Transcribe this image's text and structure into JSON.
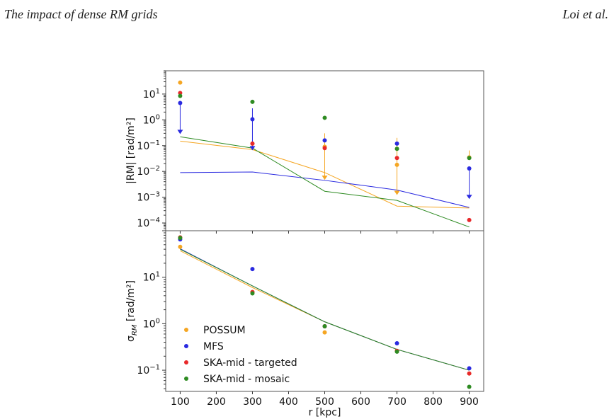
{
  "page": {
    "title": "The impact of dense RM grids",
    "authors": "Loi et al."
  },
  "colors": {
    "POSSUM": "#f5a623",
    "MFS": "#2a2ae0",
    "SKA-mid - targeted": "#e8282a",
    "SKA-mid - mosaic": "#2e8b22"
  },
  "chart_data": [
    {
      "type": "scatter",
      "panel": "top",
      "ylabel": "|RM| [rad/m²]",
      "yscale": "log",
      "ylim": [
        5e-05,
        80
      ],
      "xlim": [
        60,
        940
      ],
      "yticks": [
        {
          "value": 10,
          "base": "10",
          "exp": "1"
        },
        {
          "value": 1,
          "base": "10",
          "exp": "0"
        },
        {
          "value": 0.1,
          "base": "10",
          "exp": "−1"
        },
        {
          "value": 0.01,
          "base": "10",
          "exp": "−2"
        },
        {
          "value": 0.001,
          "base": "10",
          "exp": "−3"
        },
        {
          "value": 0.0001,
          "base": "10",
          "exp": "−4"
        }
      ],
      "x": [
        100,
        300,
        500,
        700,
        900
      ],
      "series": [
        {
          "name": "POSSUM",
          "points": [
            28,
            0.12,
            0.09,
            0.018,
            0.035
          ],
          "yerr_low": [
            null,
            null,
            0.005,
            0.0013,
            null
          ],
          "yerr_high": [
            null,
            null,
            0.3,
            0.2,
            0.065
          ],
          "lower_is_limit": [
            false,
            false,
            true,
            true,
            false
          ],
          "model": [
            0.15,
            0.07,
            0.009,
            0.00045,
            0.00038
          ]
        },
        {
          "name": "MFS",
          "points": [
            4.5,
            1.05,
            0.16,
            0.12,
            0.013
          ],
          "yerr_low": [
            0.3,
            0.07,
            null,
            null,
            0.0009
          ],
          "yerr_high": [
            null,
            2.8,
            null,
            null,
            null
          ],
          "lower_is_limit": [
            true,
            true,
            false,
            false,
            true
          ],
          "model": [
            0.009,
            0.0095,
            0.0045,
            0.0019,
            0.0004
          ]
        },
        {
          "name": "SKA-mid - targeted",
          "points": [
            11,
            0.12,
            0.08,
            0.033,
            0.00013
          ],
          "yerr_low": [
            null,
            null,
            null,
            null,
            null
          ],
          "yerr_high": [
            null,
            null,
            null,
            null,
            null
          ],
          "lower_is_limit": [
            false,
            false,
            false,
            false,
            false
          ],
          "model": []
        },
        {
          "name": "SKA-mid - mosaic",
          "points": [
            8.5,
            5,
            1.2,
            0.075,
            0.033
          ],
          "yerr_low": [
            null,
            null,
            null,
            null,
            null
          ],
          "yerr_high": [
            null,
            null,
            null,
            null,
            null
          ],
          "lower_is_limit": [
            false,
            false,
            false,
            false,
            false
          ],
          "model": [
            0.22,
            0.08,
            0.0017,
            0.00075,
            7e-05
          ]
        }
      ]
    },
    {
      "type": "scatter",
      "panel": "bottom",
      "xlabel": "r [kpc]",
      "ylabel": "σ_RM [rad/m²]",
      "yscale": "log",
      "ylim": [
        0.035,
        100
      ],
      "xlim": [
        60,
        940
      ],
      "xticks": [
        100,
        200,
        300,
        400,
        500,
        600,
        700,
        800,
        900
      ],
      "yticks": [
        {
          "value": 10,
          "base": "10",
          "exp": "1"
        },
        {
          "value": 1,
          "base": "10",
          "exp": "0"
        },
        {
          "value": 0.1,
          "base": "10",
          "exp": "−1"
        }
      ],
      "x": [
        100,
        300,
        500,
        700,
        900
      ],
      "series": [
        {
          "name": "POSSUM",
          "points": [
            45,
            4.8,
            0.65,
            0.26,
            0.085
          ],
          "model": [
            37,
            6,
            1.1,
            0.28,
            0.1
          ]
        },
        {
          "name": "MFS",
          "points": [
            65,
            15,
            0.88,
            0.38,
            0.11
          ],
          "model": [
            41,
            6.5,
            1.1,
            0.28,
            0.1
          ]
        },
        {
          "name": "SKA-mid - targeted",
          "points": [
            72,
            4.8,
            0.88,
            0.26,
            0.085
          ],
          "model": []
        },
        {
          "name": "SKA-mid - mosaic",
          "points": [
            70,
            4.5,
            0.88,
            0.25,
            0.044
          ],
          "model": [
            40,
            6.5,
            1.1,
            0.28,
            0.1
          ]
        }
      ],
      "legend": {
        "placement": "lower-left",
        "entries": [
          "POSSUM",
          "MFS",
          "SKA-mid - targeted",
          "SKA-mid - mosaic"
        ]
      }
    }
  ]
}
